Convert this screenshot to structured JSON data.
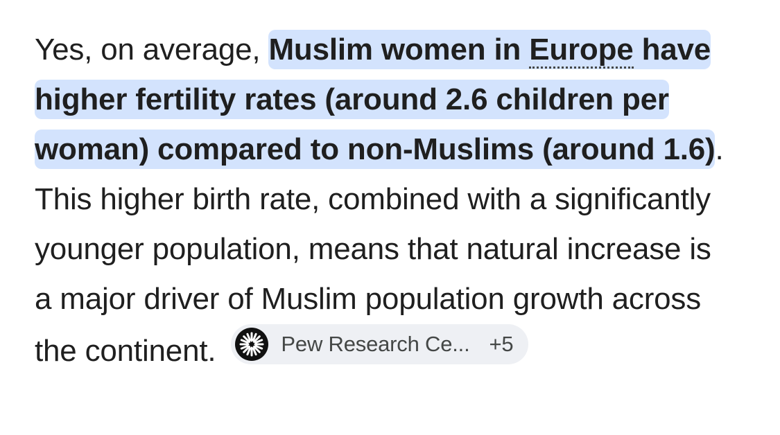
{
  "answer": {
    "lead": "Yes, on average, ",
    "highlight_part1": "Muslim women in ",
    "highlight_term": "Europe",
    "highlight_part2": " have higher fertility rates (around 2.6 children per woman) compared to non-Muslims (around 1.6)",
    "tail": ". This higher birth rate, combined with a significantly younger population, means that natural increase is a major driver of Muslim population growth across the continent. "
  },
  "source_chip": {
    "label": "Pew Research Ce...",
    "more": "+5",
    "icon": "pew-logo-icon"
  },
  "colors": {
    "highlight": "#d3e3fd",
    "chip_bg": "#eef0f4",
    "text": "#1f1f1f"
  }
}
